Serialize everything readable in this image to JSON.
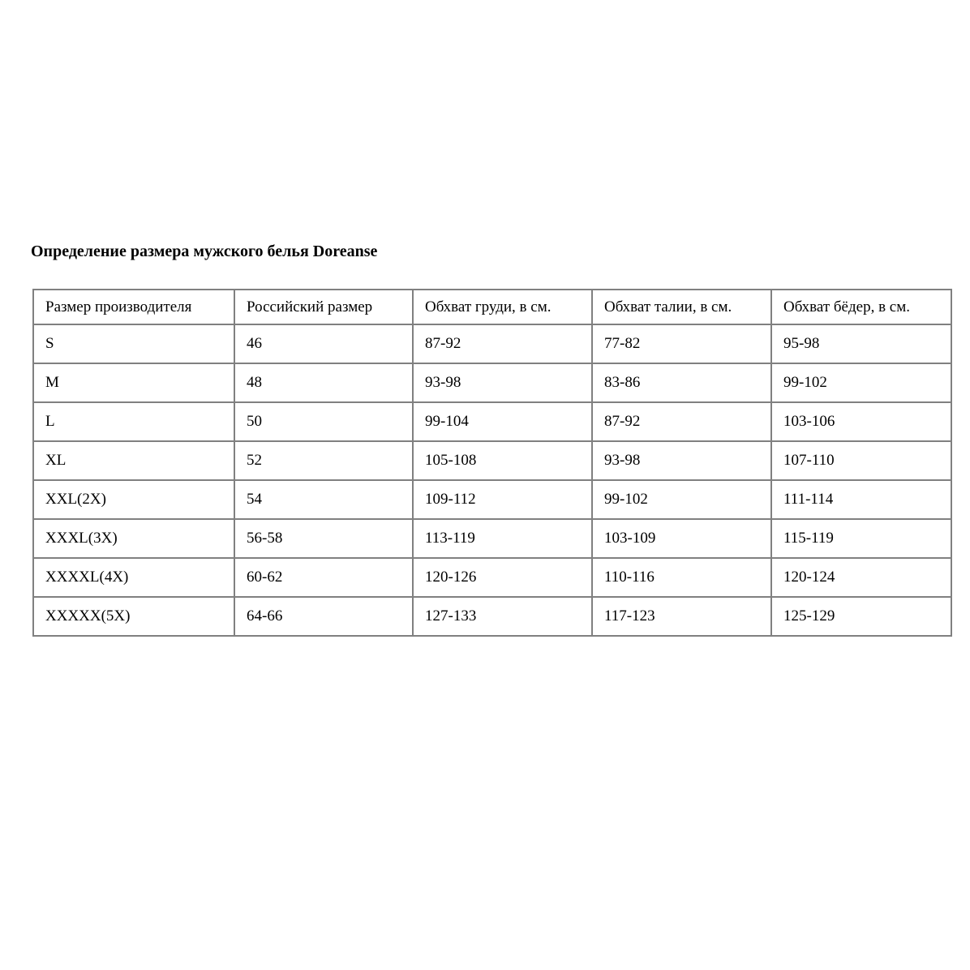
{
  "page": {
    "title": "Определение размера мужского белья Doreanse"
  },
  "table": {
    "columns": [
      "Размер производителя",
      "Российский размер",
      "Обхват груди, в см.",
      "Обхват талии, в см.",
      "Обхват бёдер, в см."
    ],
    "rows": [
      [
        "S",
        "46",
        "87-92",
        "77-82",
        "95-98"
      ],
      [
        "M",
        "48",
        "93-98",
        "83-86",
        "99-102"
      ],
      [
        "L",
        "50",
        "99-104",
        "87-92",
        "103-106"
      ],
      [
        "XL",
        "52",
        "105-108",
        "93-98",
        "107-110"
      ],
      [
        "XXL(2X)",
        "54",
        "109-112",
        "99-102",
        "111-114"
      ],
      [
        "XXXL(3X)",
        "56-58",
        "113-119",
        "103-109",
        "115-119"
      ],
      [
        "XXXXL(4X)",
        "60-62",
        "120-126",
        "110-116",
        "120-124"
      ],
      [
        "XXXXX(5X)",
        "64-66",
        "127-133",
        "117-123",
        "125-129"
      ]
    ]
  },
  "colors": {
    "border": "#808080",
    "text": "#000000",
    "background": "#ffffff"
  }
}
